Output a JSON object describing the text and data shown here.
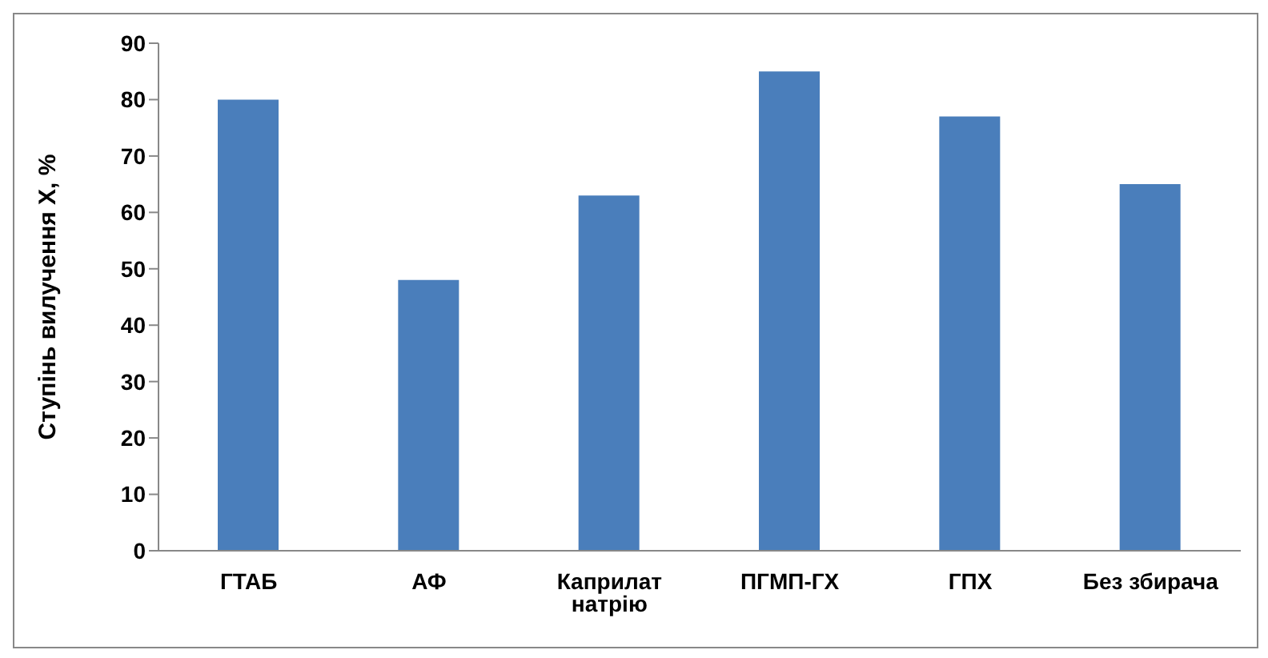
{
  "chart_data": {
    "type": "bar",
    "ylabel": "Ступінь вилучення X, %",
    "categories": [
      "ГТАБ",
      "АФ",
      "Каприлат натрію",
      "ПГМП-ГХ",
      "ГПХ",
      "Без збирача"
    ],
    "values": [
      80,
      48,
      63,
      85,
      77,
      65
    ],
    "color": "#4a7ebb",
    "ylim": [
      0,
      90
    ],
    "yticks": [
      0,
      10,
      20,
      30,
      40,
      50,
      60,
      70,
      80,
      90
    ],
    "grid": false
  }
}
